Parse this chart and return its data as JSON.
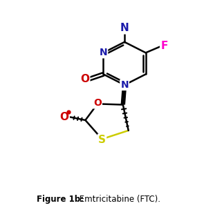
{
  "fig_width": 2.95,
  "fig_height": 3.04,
  "dpi": 100,
  "bg_color": "#ffffff",
  "colors": {
    "N": "#1a1aaa",
    "O": "#cc0000",
    "F": "#ff00cc",
    "S": "#cccc00",
    "C": "#000000"
  },
  "caption_bold": "Figure 1b:",
  "caption_normal": " Emtricitabine (FTC).",
  "caption_fontsize": 8.5
}
